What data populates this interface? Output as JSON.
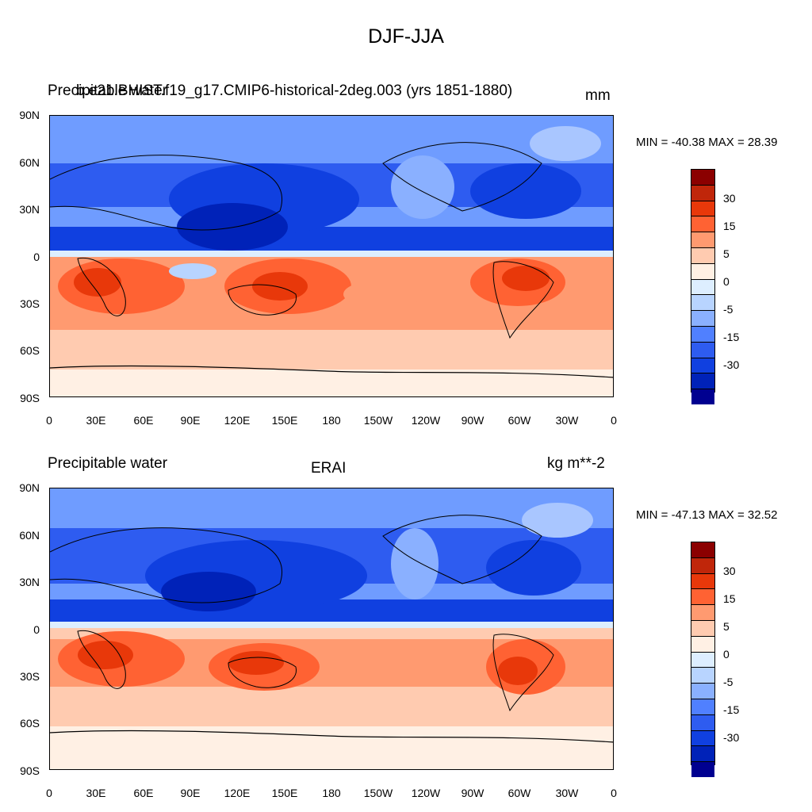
{
  "figure": {
    "title": "DJF-JJA"
  },
  "panels": [
    {
      "left_label": "Precipitable water",
      "center_label": "b.e21.BHIST.f19_g17.CMIP6-historical-2deg.003 (yrs 1851-1880)",
      "right_label": "mm",
      "min_max": "MIN = -40.38 MAX =  28.39"
    },
    {
      "left_label": "Precipitable water",
      "center_label": "ERAI",
      "right_label": "kg m**-2",
      "min_max": "MIN = -47.13 MAX =  32.52"
    }
  ],
  "axes": {
    "y_ticks": [
      "90N",
      "60N",
      "30N",
      "0",
      "30S",
      "60S",
      "90S"
    ],
    "x_ticks": [
      "0",
      "30E",
      "60E",
      "90E",
      "120E",
      "150E",
      "180",
      "150W",
      "120W",
      "90W",
      "60W",
      "30W",
      "0"
    ]
  },
  "colorbar": {
    "colors": [
      "#8b0000",
      "#c0260a",
      "#e8380a",
      "#ff6233",
      "#ff9a70",
      "#ffcbb0",
      "#fff0e4",
      "#ddeeff",
      "#b8d4ff",
      "#8ab0ff",
      "#5080ff",
      "#2e5cf0",
      "#1040e0",
      "#0022b8",
      "#000090"
    ],
    "labels": [
      "30",
      "15",
      "5",
      "0",
      "-5",
      "-15",
      "-30"
    ]
  }
}
